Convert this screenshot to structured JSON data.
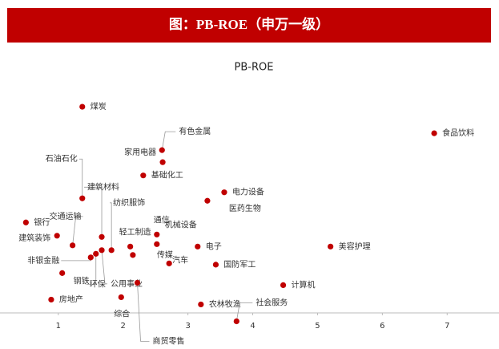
{
  "header": {
    "title": "图：PB-ROE（申万一级）"
  },
  "chart_data": {
    "type": "scatter",
    "title": "PB-ROE",
    "labels": [
      "煤炭",
      "食品饮料",
      "有色金属",
      "家用电器",
      "基础化工",
      "石油石化",
      "电力设备",
      "医药生物",
      "建筑材料",
      "纺织服饰",
      "银行",
      "交通运输",
      "建筑装饰",
      "非银金融",
      "通信",
      "机械设备",
      "轻工制造",
      "电子",
      "美容护理",
      "传媒",
      "汽车",
      "国防军工",
      "钢铁",
      "环保",
      "公用事业",
      "商贸零售",
      "计算机",
      "房地产",
      "综合",
      "农林牧渔",
      "社会服务"
    ],
    "x": [
      1.37,
      6.8,
      2.6,
      2.61,
      2.31,
      1.37,
      3.56,
      3.3,
      1.67,
      1.82,
      0.5,
      1.22,
      0.98,
      1.5,
      2.52,
      2.52,
      2.11,
      3.15,
      5.2,
      2.15,
      2.71,
      3.43,
      1.06,
      1.58,
      1.67,
      2.22,
      4.47,
      0.89,
      1.97,
      3.2,
      3.75
    ],
    "values": [
      17.1,
      14.9,
      13.5,
      12.5,
      11.4,
      9.5,
      10.0,
      9.3,
      6.3,
      5.2,
      7.5,
      5.6,
      6.4,
      4.6,
      6.5,
      5.7,
      5.5,
      5.5,
      5.5,
      4.8,
      4.1,
      4.0,
      3.3,
      4.9,
      5.2,
      2.5,
      2.3,
      1.1,
      1.3,
      0.7,
      -0.7
    ],
    "color": "#c00000",
    "xlim": [
      0.1,
      7.8
    ],
    "xticks": [
      1,
      2,
      3,
      4,
      5,
      6,
      7
    ],
    "ylim": [
      -2,
      19.3
    ]
  }
}
